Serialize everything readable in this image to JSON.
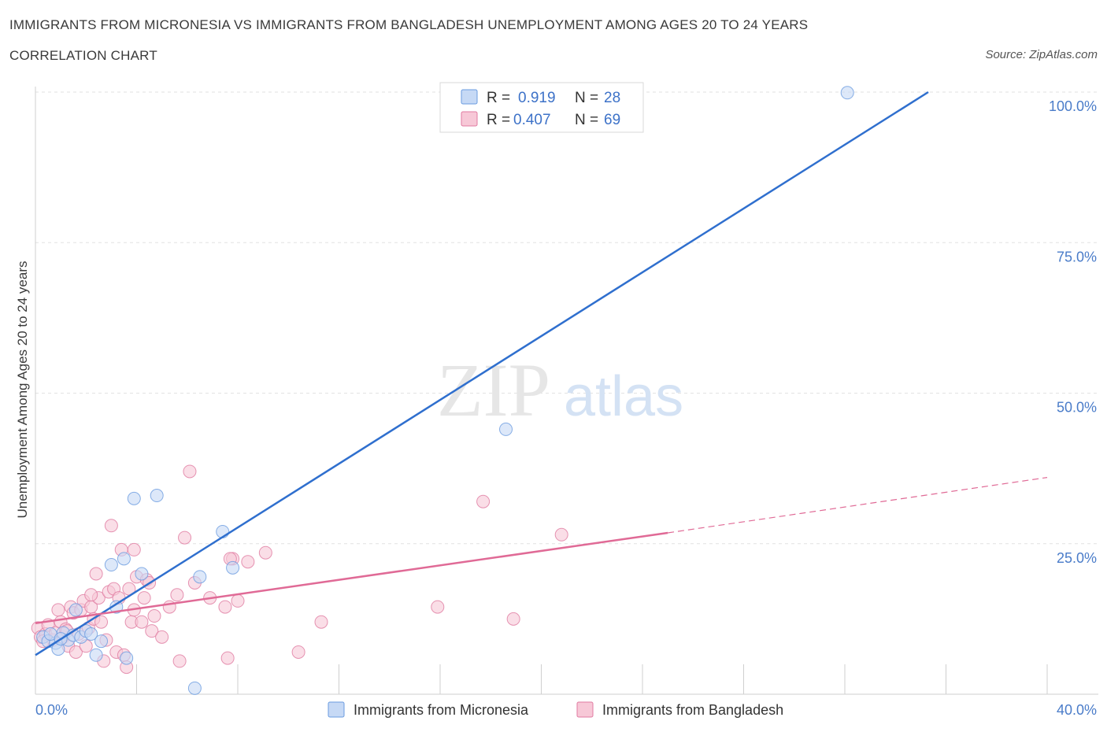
{
  "title": "IMMIGRANTS FROM MICRONESIA VS IMMIGRANTS FROM BANGLADESH UNEMPLOYMENT AMONG AGES 20 TO 24 YEARS",
  "subtitle": "CORRELATION CHART",
  "source": "Source: ZipAtlas.com",
  "watermark": {
    "zip": "ZIP",
    "atlas": "atlas"
  },
  "chart_data": {
    "type": "scatter",
    "ylabel": "Unemployment Among Ages 20 to 24 years",
    "xlim": [
      0,
      40
    ],
    "ylim": [
      0,
      100
    ],
    "x_tick_labels": [
      "0.0%",
      "40.0%"
    ],
    "y_ticks": [
      25,
      50,
      75,
      100
    ],
    "y_tick_labels": [
      "25.0%",
      "50.0%",
      "75.0%",
      "100.0%"
    ],
    "legend": {
      "r_label": "R =",
      "n_label": "N =",
      "entries": [
        {
          "r": "0.919",
          "n": "28"
        },
        {
          "r": "0.407",
          "n": "69"
        }
      ]
    },
    "series": [
      {
        "name": "Immigrants from Micronesia",
        "color": "#6a9be0",
        "fill": "#c6d9f5",
        "trend": {
          "x0": 0,
          "y0": 6.5,
          "x1": 35.3,
          "y1": 100,
          "dash_to": null
        },
        "points": [
          [
            0.3,
            9.5
          ],
          [
            0.5,
            8.8
          ],
          [
            0.8,
            8.5
          ],
          [
            0.9,
            7.5
          ],
          [
            1.1,
            10.2
          ],
          [
            1.3,
            9.0
          ],
          [
            1.5,
            9.8
          ],
          [
            1.6,
            14.0
          ],
          [
            1.8,
            9.5
          ],
          [
            2.0,
            10.5
          ],
          [
            2.2,
            10.0
          ],
          [
            2.4,
            6.5
          ],
          [
            2.6,
            8.8
          ],
          [
            3.0,
            21.5
          ],
          [
            3.2,
            14.5
          ],
          [
            3.5,
            22.5
          ],
          [
            3.6,
            6.0
          ],
          [
            3.9,
            32.5
          ],
          [
            4.2,
            20.0
          ],
          [
            4.8,
            33.0
          ],
          [
            6.3,
            1.0
          ],
          [
            6.5,
            19.5
          ],
          [
            7.4,
            27.0
          ],
          [
            7.8,
            21.0
          ],
          [
            18.6,
            44.0
          ],
          [
            32.1,
            99.9
          ],
          [
            0.6,
            10.0
          ],
          [
            1.0,
            9.2
          ]
        ]
      },
      {
        "name": "Immigrants from Bangladesh",
        "color": "#e07aa0",
        "fill": "#f7c8d7",
        "trend": {
          "x0": 0,
          "y0": 11.8,
          "x1": 25,
          "y1": 26.8,
          "dash_to": {
            "x": 40,
            "y": 36
          }
        },
        "points": [
          [
            0.1,
            11.0
          ],
          [
            0.2,
            9.5
          ],
          [
            0.4,
            10.0
          ],
          [
            0.5,
            11.5
          ],
          [
            0.7,
            9.0
          ],
          [
            0.8,
            10.2
          ],
          [
            0.9,
            14.0
          ],
          [
            1.0,
            12.0
          ],
          [
            1.1,
            9.5
          ],
          [
            1.2,
            10.8
          ],
          [
            1.3,
            8.0
          ],
          [
            1.4,
            14.5
          ],
          [
            1.5,
            13.5
          ],
          [
            1.6,
            7.0
          ],
          [
            1.7,
            10.0
          ],
          [
            1.8,
            14.0
          ],
          [
            1.9,
            15.5
          ],
          [
            2.0,
            8.0
          ],
          [
            2.1,
            11.0
          ],
          [
            2.2,
            14.5
          ],
          [
            2.3,
            12.5
          ],
          [
            2.4,
            20.0
          ],
          [
            2.5,
            16.0
          ],
          [
            2.6,
            12.0
          ],
          [
            2.7,
            5.5
          ],
          [
            2.8,
            9.0
          ],
          [
            2.9,
            17.0
          ],
          [
            3.0,
            28.0
          ],
          [
            3.1,
            17.5
          ],
          [
            3.2,
            7.0
          ],
          [
            3.3,
            16.0
          ],
          [
            3.4,
            24.0
          ],
          [
            3.5,
            6.5
          ],
          [
            3.6,
            4.5
          ],
          [
            3.7,
            17.5
          ],
          [
            3.8,
            12.0
          ],
          [
            3.9,
            24.0
          ],
          [
            4.0,
            19.5
          ],
          [
            4.2,
            12.0
          ],
          [
            4.3,
            16.0
          ],
          [
            4.4,
            19.0
          ],
          [
            4.6,
            10.5
          ],
          [
            4.7,
            13.0
          ],
          [
            5.0,
            9.5
          ],
          [
            5.3,
            14.5
          ],
          [
            5.6,
            16.5
          ],
          [
            5.7,
            5.5
          ],
          [
            5.9,
            26.0
          ],
          [
            6.1,
            37.0
          ],
          [
            6.3,
            18.5
          ],
          [
            6.9,
            16.0
          ],
          [
            7.5,
            14.5
          ],
          [
            7.6,
            6.0
          ],
          [
            7.8,
            22.5
          ],
          [
            8.0,
            15.5
          ],
          [
            8.4,
            22.0
          ],
          [
            9.1,
            23.5
          ],
          [
            10.4,
            7.0
          ],
          [
            11.3,
            12.0
          ],
          [
            15.9,
            14.5
          ],
          [
            17.7,
            32.0
          ],
          [
            18.9,
            12.5
          ],
          [
            20.8,
            26.5
          ],
          [
            1.25,
            10.5
          ],
          [
            0.3,
            8.8
          ],
          [
            2.2,
            16.5
          ],
          [
            3.9,
            14.0
          ],
          [
            7.7,
            22.5
          ],
          [
            4.5,
            18.5
          ]
        ]
      }
    ]
  },
  "bottom_legend": [
    "Immigrants from Micronesia",
    "Immigrants from Bangladesh"
  ]
}
